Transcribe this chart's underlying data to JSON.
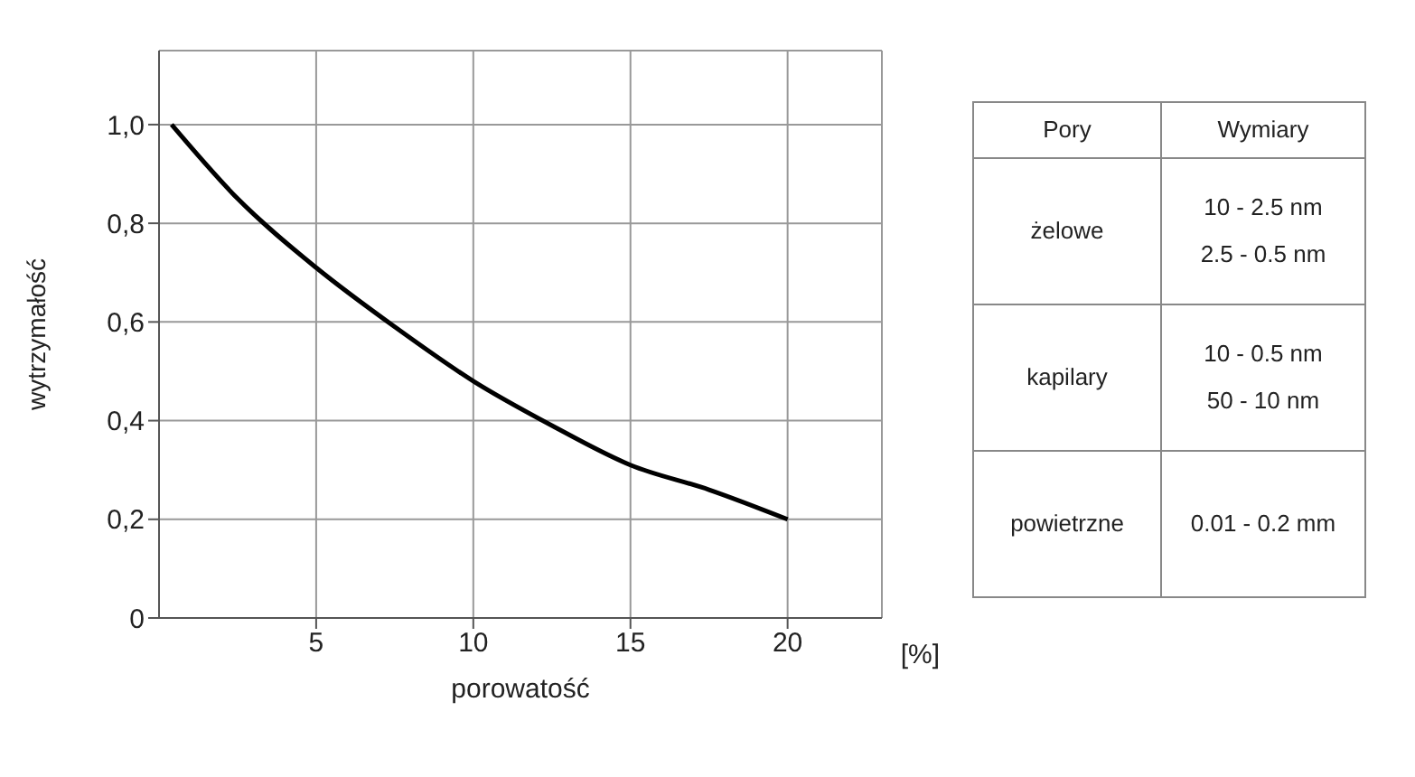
{
  "chart_data": [
    {
      "type": "line",
      "xlabel": "porowatość",
      "ylabel": "wytrzymałość",
      "annotations": [
        "[%]"
      ],
      "series": [
        {
          "color": "#000000",
          "x": [
            0.4,
            2.5,
            5,
            7.5,
            10,
            12.5,
            15,
            17.5,
            20
          ],
          "values": [
            1.0,
            0.85,
            0.71,
            0.59,
            0.48,
            0.39,
            0.31,
            0.26,
            0.2
          ]
        }
      ],
      "xlim": [
        0,
        23
      ],
      "xticks": [
        5,
        10,
        15,
        20
      ],
      "ylim": [
        0,
        1.15
      ],
      "yticks": [
        0,
        {
          "value": 0.2,
          "label": "0,2"
        },
        {
          "value": 0.4,
          "label": "0,4"
        },
        {
          "value": 0.6,
          "label": "0,6"
        },
        {
          "value": 0.8,
          "label": "0,8"
        },
        {
          "value": 1,
          "label": "1,0"
        }
      ],
      "grid": true,
      "marker": "none",
      "line_style": "solid"
    },
    {
      "type": "other",
      "annotations": [
        "Pory",
        "Wymiary",
        "żelowe",
        "10 - 2.5 nm\n2.5 - 0.5 nm",
        "kapilary",
        "10 - 0.5 nm\n50 - 10 nm",
        "powietrzne",
        "0.01 - 0.2 mm"
      ]
    }
  ]
}
